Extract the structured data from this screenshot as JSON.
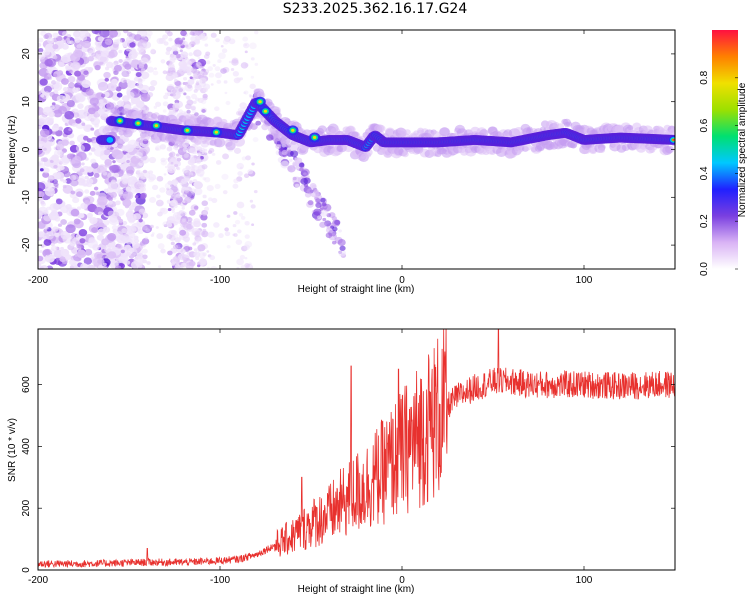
{
  "page_title": "S233.2025.362.16.17.G24",
  "chart_data": [
    {
      "type": "heatmap",
      "xlabel": "Height of straight line (km)",
      "ylabel": "Frequency (Hz)",
      "xlim": [
        -200,
        150
      ],
      "ylim": [
        -25,
        25
      ],
      "xticks": [
        -200,
        -100,
        0,
        100
      ],
      "yticks": [
        -20,
        -10,
        0,
        10,
        20
      ],
      "ridge": [
        {
          "x": -160,
          "y": 6.0
        },
        {
          "x": -150,
          "y": 5.5
        },
        {
          "x": -140,
          "y": 5.0
        },
        {
          "x": -130,
          "y": 4.5
        },
        {
          "x": -120,
          "y": 4.0
        },
        {
          "x": -110,
          "y": 3.8
        },
        {
          "x": -100,
          "y": 3.5
        },
        {
          "x": -90,
          "y": 3.0
        },
        {
          "x": -80,
          "y": 10.0
        },
        {
          "x": -70,
          "y": 6.0
        },
        {
          "x": -60,
          "y": 3.0
        },
        {
          "x": -50,
          "y": 1.5
        },
        {
          "x": -40,
          "y": 2.0
        },
        {
          "x": -30,
          "y": 2.0
        },
        {
          "x": -20,
          "y": 0.5
        },
        {
          "x": -15,
          "y": 3.0
        },
        {
          "x": -10,
          "y": 1.5
        },
        {
          "x": 0,
          "y": 1.5
        },
        {
          "x": 20,
          "y": 1.5
        },
        {
          "x": 40,
          "y": 2.0
        },
        {
          "x": 60,
          "y": 1.5
        },
        {
          "x": 80,
          "y": 3.0
        },
        {
          "x": 90,
          "y": 3.5
        },
        {
          "x": 100,
          "y": 2.0
        },
        {
          "x": 120,
          "y": 2.5
        },
        {
          "x": 150,
          "y": 2.0
        }
      ]
    },
    {
      "type": "line",
      "xlabel": "Height of straight line (km)",
      "ylabel": "SNR (10 * v/v)",
      "xlim": [
        -200,
        150
      ],
      "ylim": [
        0,
        780
      ],
      "xticks": [
        -200,
        -100,
        0,
        100
      ],
      "yticks": [
        0,
        200,
        400,
        600
      ],
      "series": [
        {
          "name": "SNR",
          "color": "#e8312e",
          "x": [
            -200,
            -180,
            -160,
            -140,
            -120,
            -100,
            -90,
            -80,
            -70,
            -60,
            -50,
            -40,
            -30,
            -20,
            -10,
            0,
            10,
            20,
            30,
            40,
            50,
            60,
            70,
            80,
            100,
            120,
            140,
            150
          ],
          "y": [
            20,
            20,
            22,
            25,
            25,
            30,
            35,
            50,
            80,
            110,
            150,
            180,
            230,
            270,
            320,
            380,
            440,
            500,
            560,
            590,
            610,
            610,
            600,
            600,
            600,
            595,
            600,
            600
          ]
        }
      ],
      "spikes": [
        {
          "x": -140,
          "y": 70
        },
        {
          "x": -55,
          "y": 300
        },
        {
          "x": -28,
          "y": 660
        },
        {
          "x": -2,
          "y": 650
        },
        {
          "x": 53,
          "y": 780
        }
      ]
    }
  ],
  "colorbar": {
    "label": "Normalized spectral amplitude",
    "ticks": [
      "0.0",
      "0.2",
      "0.4",
      "0.6",
      "0.8"
    ],
    "colors": [
      "#ffffff",
      "#d9b3f5",
      "#7a3fe0",
      "#2020ff",
      "#00c8ff",
      "#00e070",
      "#9de000",
      "#f0e000",
      "#ff8000",
      "#ff1040"
    ]
  }
}
